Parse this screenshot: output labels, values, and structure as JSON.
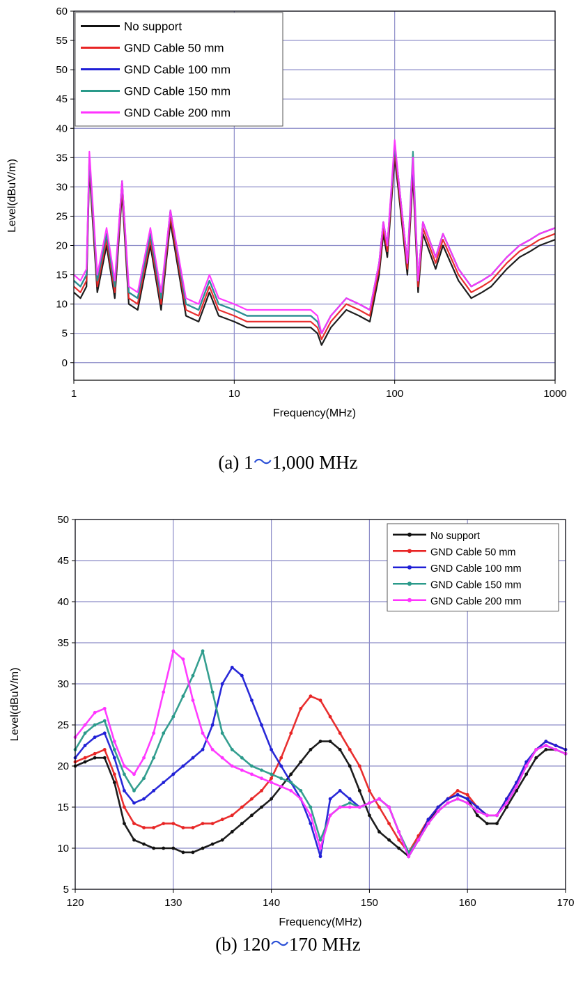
{
  "chart_data": [
    {
      "type": "line",
      "xlabel": "Frequency(MHz)",
      "ylabel": "Level(dBuV/m)",
      "xscale": "log",
      "xlim": [
        1,
        1000
      ],
      "ylim": [
        -3,
        60
      ],
      "x_ticks": [
        "1",
        "10",
        "100",
        "1000"
      ],
      "y_ticks": [
        "0",
        "5",
        "10",
        "15",
        "20",
        "25",
        "30",
        "35",
        "40",
        "45",
        "50",
        "55",
        "60"
      ],
      "grid": true,
      "legend_position": "top-left",
      "caption": {
        "prefix": "(a)  1",
        "sep": "～",
        "suffix": "1,000  MHz"
      },
      "x": [
        1,
        1.1,
        1.2,
        1.25,
        1.4,
        1.6,
        1.8,
        2.0,
        2.2,
        2.5,
        3,
        3.5,
        4,
        5,
        6,
        7,
        8,
        10,
        12,
        15,
        20,
        25,
        30,
        33,
        35,
        40,
        50,
        60,
        70,
        80,
        85,
        90,
        100,
        105,
        120,
        130,
        140,
        150,
        180,
        200,
        250,
        300,
        350,
        400,
        500,
        600,
        700,
        800,
        1000
      ],
      "series": [
        {
          "name": "No support",
          "color": "#111111",
          "values": [
            12,
            11,
            13,
            33,
            12,
            20,
            11,
            29,
            10,
            9,
            20,
            9,
            24,
            8,
            7,
            12,
            8,
            7,
            6,
            6,
            6,
            6,
            6,
            5,
            3,
            6,
            9,
            8,
            7,
            15,
            22,
            18,
            35,
            30,
            15,
            32,
            12,
            22,
            16,
            20,
            14,
            11,
            12,
            13,
            16,
            18,
            19,
            20,
            21
          ]
        },
        {
          "name": "GND Cable 50 mm",
          "color": "#e82424",
          "values": [
            13,
            12,
            14,
            34,
            13,
            21,
            12,
            30,
            11,
            10,
            21,
            10,
            25,
            9,
            8,
            13,
            9,
            8,
            7,
            7,
            7,
            7,
            7,
            6,
            4,
            7,
            10,
            9,
            8,
            16,
            23,
            19,
            36,
            31,
            16,
            33,
            13,
            23,
            17,
            21,
            15,
            12,
            13,
            14,
            17,
            19,
            20,
            21,
            22
          ]
        },
        {
          "name": "GND Cable 100 mm",
          "color": "#1f1fd6",
          "values": [
            14,
            13,
            15,
            35,
            14,
            22,
            13,
            31,
            12,
            11,
            22,
            11,
            26,
            10,
            9,
            14,
            10,
            9,
            8,
            8,
            8,
            8,
            8,
            7,
            5,
            8,
            11,
            10,
            9,
            17,
            24,
            20,
            37,
            32,
            17,
            34,
            14,
            24,
            18,
            22,
            16,
            13,
            14,
            15,
            18,
            20,
            21,
            22,
            23
          ]
        },
        {
          "name": "GND Cable 150 mm",
          "color": "#2a9a8a",
          "values": [
            14,
            13,
            15,
            35,
            14,
            22,
            13,
            31,
            12,
            11,
            22,
            11,
            26,
            10,
            9,
            14,
            10,
            9,
            8,
            8,
            8,
            8,
            8,
            7,
            5,
            8,
            11,
            10,
            9,
            17,
            24,
            20,
            37,
            32,
            17,
            36,
            14,
            24,
            18,
            22,
            16,
            13,
            14,
            15,
            18,
            20,
            21,
            22,
            23
          ]
        },
        {
          "name": "GND Cable 200 mm",
          "color": "#ff33ff",
          "values": [
            15,
            14,
            16,
            36,
            15,
            23,
            14,
            31,
            13,
            12,
            23,
            12,
            26,
            11,
            10,
            15,
            11,
            10,
            9,
            9,
            9,
            9,
            9,
            8,
            5,
            8,
            11,
            10,
            9,
            17,
            24,
            20,
            38,
            32,
            17,
            35,
            14,
            24,
            18,
            22,
            16,
            13,
            14,
            15,
            18,
            20,
            21,
            22,
            23
          ]
        }
      ]
    },
    {
      "type": "line",
      "xlabel": "Frequency(MHz)",
      "ylabel": "Level(dBuV/m)",
      "xlim": [
        120,
        170
      ],
      "ylim": [
        5,
        50
      ],
      "x_ticks": [
        "120",
        "130",
        "140",
        "150",
        "160",
        "170"
      ],
      "y_ticks": [
        "5",
        "10",
        "15",
        "20",
        "25",
        "30",
        "35",
        "40",
        "45",
        "50"
      ],
      "grid": true,
      "legend_position": "top-right",
      "caption": {
        "prefix": "(b)  120",
        "sep": "～",
        "suffix": "170  MHz"
      },
      "x": [
        120,
        121,
        122,
        123,
        124,
        125,
        126,
        127,
        128,
        129,
        130,
        131,
        132,
        133,
        134,
        135,
        136,
        137,
        138,
        139,
        140,
        141,
        142,
        143,
        144,
        145,
        146,
        147,
        148,
        149,
        150,
        151,
        152,
        153,
        154,
        155,
        156,
        157,
        158,
        159,
        160,
        161,
        162,
        163,
        164,
        165,
        166,
        167,
        168,
        169,
        170
      ],
      "series": [
        {
          "name": "No support",
          "color": "#111111",
          "values": [
            20,
            20.5,
            21,
            21,
            18,
            13,
            11,
            10.5,
            10,
            10,
            10,
            9.5,
            9.5,
            10,
            10.5,
            11,
            12,
            13,
            14,
            15,
            16,
            17.5,
            19,
            20.5,
            22,
            23,
            23,
            22,
            20,
            17,
            14,
            12,
            11,
            10,
            9,
            11,
            13,
            15,
            16,
            16.5,
            16,
            14,
            13,
            13,
            15,
            17,
            19,
            21,
            22,
            22,
            21.5
          ]
        },
        {
          "name": "GND Cable 50 mm",
          "color": "#e82424",
          "values": [
            20.5,
            21,
            21.5,
            22,
            19,
            15,
            13,
            12.5,
            12.5,
            13,
            13,
            12.5,
            12.5,
            13,
            13,
            13.5,
            14,
            15,
            16,
            17,
            18.5,
            21,
            24,
            27,
            28.5,
            28,
            26,
            24,
            22,
            20,
            17,
            15,
            13,
            11,
            9.5,
            11.5,
            13.5,
            15,
            16,
            17,
            16.5,
            15,
            14,
            14,
            16,
            18,
            20,
            22,
            23,
            22.5,
            22
          ]
        },
        {
          "name": "GND Cable 100 mm",
          "color": "#1f1fd6",
          "values": [
            21,
            22.5,
            23.5,
            24,
            21,
            17,
            15.5,
            16,
            17,
            18,
            19,
            20,
            21,
            22,
            25,
            30,
            32,
            31,
            28,
            25,
            22,
            20,
            18,
            16,
            13,
            9,
            16,
            17,
            16,
            15,
            15.5,
            16,
            15,
            12,
            9,
            11,
            13.5,
            15,
            16,
            16.5,
            16,
            15,
            14,
            14,
            16,
            18,
            20.5,
            22,
            23,
            22.5,
            22
          ]
        },
        {
          "name": "GND Cable 150 mm",
          "color": "#2a9a8a",
          "values": [
            22,
            24,
            25,
            25.5,
            22,
            19,
            17,
            18.5,
            21,
            24,
            26,
            28.5,
            31,
            34,
            29,
            24,
            22,
            21,
            20,
            19.5,
            19,
            18.5,
            18,
            17,
            15,
            11,
            14,
            15,
            15.5,
            15,
            15.5,
            16,
            15,
            12,
            9.5,
            11,
            13,
            14.5,
            15.5,
            16,
            15.5,
            14.5,
            14,
            14,
            15.5,
            17.5,
            20,
            22,
            22.5,
            22,
            21.5
          ]
        },
        {
          "name": "GND Cable 200 mm",
          "color": "#ff33ff",
          "values": [
            23.5,
            25,
            26.5,
            27,
            23,
            20,
            19,
            21,
            24,
            29,
            34,
            33,
            28,
            24,
            22,
            21,
            20,
            19.5,
            19,
            18.5,
            18,
            17.5,
            17,
            16,
            14,
            10,
            14,
            15,
            15,
            15,
            15.5,
            16,
            15,
            12,
            9,
            11,
            13,
            14.5,
            15.5,
            16,
            15.5,
            14.5,
            14,
            14,
            15.5,
            17.5,
            20,
            22,
            22.5,
            22,
            21.5
          ]
        }
      ]
    }
  ]
}
